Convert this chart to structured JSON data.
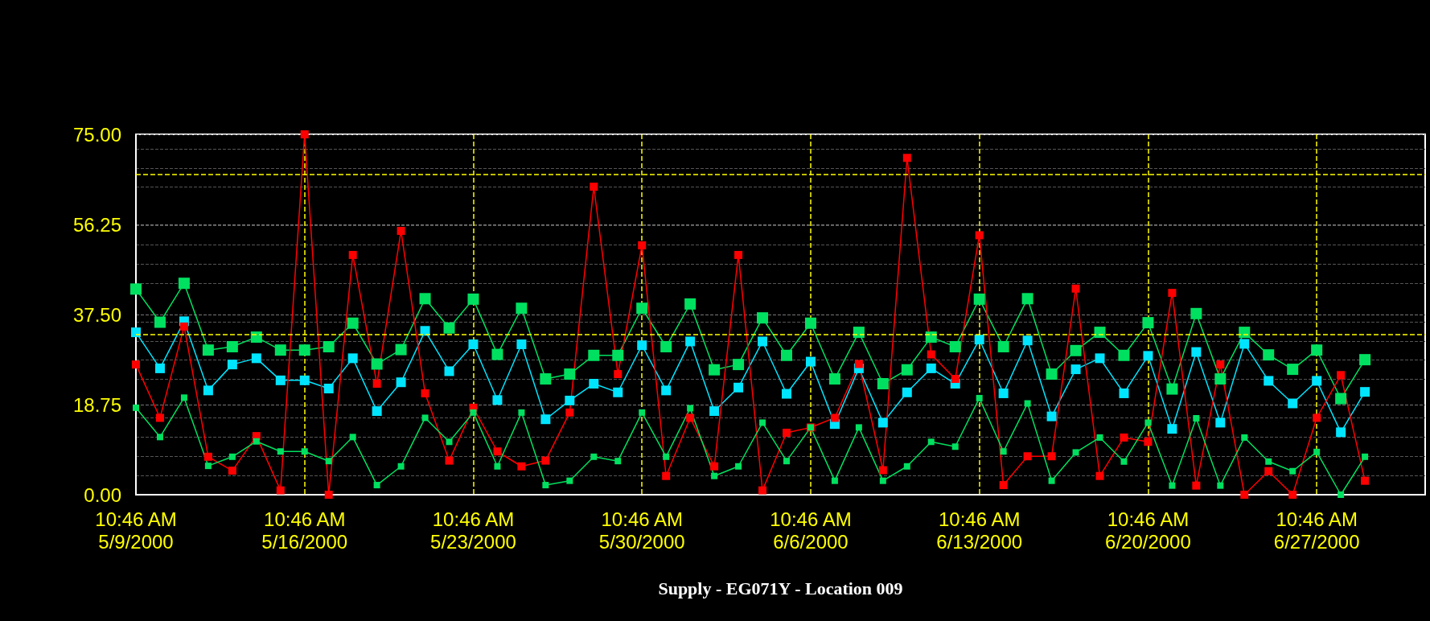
{
  "chart_data": {
    "type": "line",
    "xlabel": "Supply - EG071Y - Location 009",
    "x": [
      "2000-05-09T10:46",
      "2000-05-10T10:46",
      "2000-05-11T10:46",
      "2000-05-12T10:46",
      "2000-05-13T10:46",
      "2000-05-14T10:46",
      "2000-05-15T10:46",
      "2000-05-16T10:46",
      "2000-05-17T10:46",
      "2000-05-18T10:46",
      "2000-05-19T10:46",
      "2000-05-20T10:46",
      "2000-05-21T10:46",
      "2000-05-22T10:46",
      "2000-05-23T10:46",
      "2000-05-24T10:46",
      "2000-05-25T10:46",
      "2000-05-26T10:46",
      "2000-05-27T10:46",
      "2000-05-28T10:46",
      "2000-05-29T10:46",
      "2000-05-30T10:46",
      "2000-05-31T10:46",
      "2000-06-01T10:46",
      "2000-06-02T10:46",
      "2000-06-03T10:46",
      "2000-06-04T10:46",
      "2000-06-05T10:46",
      "2000-06-06T10:46",
      "2000-06-07T10:46",
      "2000-06-08T10:46",
      "2000-06-09T10:46",
      "2000-06-10T10:46",
      "2000-06-11T10:46",
      "2000-06-12T10:46",
      "2000-06-13T10:46",
      "2000-06-14T10:46",
      "2000-06-15T10:46",
      "2000-06-16T10:46",
      "2000-06-17T10:46",
      "2000-06-18T10:46",
      "2000-06-19T10:46",
      "2000-06-20T10:46",
      "2000-06-21T10:46",
      "2000-06-22T10:46",
      "2000-06-23T10:46",
      "2000-06-24T10:46",
      "2000-06-25T10:46",
      "2000-06-26T10:46",
      "2000-06-27T10:46",
      "2000-06-28T10:46",
      "2000-06-29T10:46"
    ],
    "series": [
      {
        "color": "#00e060",
        "values": [
          42.8,
          35.9,
          44.0,
          30.1,
          30.8,
          32.8,
          30.1,
          30.1,
          30.8,
          35.7,
          27.2,
          30.2,
          40.8,
          34.7,
          40.7,
          29.2,
          38.8,
          24.1,
          25.1,
          29.0,
          29.0,
          38.8,
          30.8,
          39.7,
          26.0,
          27.1,
          36.8,
          29.0,
          35.7,
          24.1,
          33.8,
          23.1,
          26.0,
          32.8,
          30.8,
          40.7,
          30.8,
          40.8,
          25.1,
          30.0,
          33.8,
          29.0,
          35.8,
          22.0,
          37.7,
          24.1,
          33.8,
          29.1,
          26.1,
          30.1,
          20.0,
          28.1
        ]
      },
      {
        "color": "#00e5ff",
        "values": [
          33.8,
          26.3,
          36.1,
          21.7,
          27.1,
          28.4,
          23.8,
          23.8,
          22.1,
          28.4,
          17.4,
          23.4,
          34.1,
          25.7,
          31.3,
          19.7,
          31.3,
          15.7,
          19.6,
          23.1,
          21.3,
          31.1,
          21.7,
          31.9,
          17.4,
          22.3,
          31.9,
          21.0,
          27.7,
          14.7,
          26.3,
          15.0,
          21.3,
          26.3,
          23.1,
          32.3,
          21.1,
          32.1,
          16.3,
          26.1,
          28.4,
          21.1,
          28.9,
          13.7,
          29.7,
          15.0,
          31.4,
          23.7,
          19.0,
          23.7,
          13.0,
          21.4
        ]
      },
      {
        "color": "#ff0000",
        "values": [
          27.1,
          16.0,
          35.0,
          7.9,
          5.0,
          12.2,
          0.9,
          75.0,
          0,
          49.9,
          23.1,
          54.9,
          21.1,
          7.1,
          18.1,
          9.0,
          5.9,
          7.1,
          17.1,
          64.1,
          25.1,
          51.9,
          3.9,
          16.0,
          5.9,
          49.9,
          0.9,
          12.9,
          14.0,
          16.0,
          27.2,
          5.1,
          70.1,
          29.2,
          24.1,
          54.0,
          2.0,
          8.0,
          8.0,
          42.9,
          3.9,
          11.9,
          11.0,
          42.0,
          1.9,
          27.1,
          0,
          4.9,
          0,
          16.0,
          24.9,
          2.9
        ]
      },
      {
        "color": "#00e060",
        "values": [
          18.1,
          12.0,
          20.2,
          6.0,
          7.9,
          11.1,
          9.0,
          9.0,
          7.0,
          12.0,
          2.0,
          5.9,
          16.0,
          11.0,
          17.1,
          5.9,
          17.1,
          2.0,
          2.9,
          7.9,
          7.0,
          17.1,
          7.9,
          18.0,
          3.9,
          5.9,
          15.0,
          7.0,
          14.0,
          2.9,
          14.0,
          2.9,
          5.9,
          11.0,
          10.0,
          20.1,
          9.0,
          19.0,
          2.9,
          8.8,
          11.9,
          6.9,
          15.0,
          1.9,
          15.9,
          1.9,
          11.9,
          6.9,
          4.9,
          8.9,
          0,
          7.9
        ]
      }
    ],
    "xlim": [
      "2000-05-09T10:46",
      "2000-07-01T22:46"
    ],
    "xticks": [
      {
        "value": "2000-05-09T10:46",
        "label": "10:46 AM\n5/9/2000"
      },
      {
        "value": "2000-05-16T10:46",
        "label": "10:46 AM\n5/16/2000"
      },
      {
        "value": "2000-05-23T10:46",
        "label": "10:46 AM\n5/23/2000"
      },
      {
        "value": "2000-05-30T10:46",
        "label": "10:46 AM\n5/30/2000"
      },
      {
        "value": "2000-06-06T10:46",
        "label": "10:46 AM\n6/6/2000"
      },
      {
        "value": "2000-06-13T10:46",
        "label": "10:46 AM\n6/13/2000"
      },
      {
        "value": "2000-06-20T10:46",
        "label": "10:46 AM\n6/20/2000"
      },
      {
        "value": "2000-06-27T10:46",
        "label": "10:46 AM\n6/27/2000"
      }
    ],
    "ylim": [
      0,
      75
    ],
    "yticks": [
      {
        "value": 0,
        "label": "0.00"
      },
      {
        "value": 18.75,
        "label": "18.75"
      },
      {
        "value": 37.5,
        "label": "37.50"
      },
      {
        "value": 56.25,
        "label": "56.25"
      },
      {
        "value": 75,
        "label": "75.00"
      }
    ],
    "ref_lines": [
      {
        "axis": "y",
        "value": 33.3,
        "color": "#ffff00",
        "line_style": "dashed"
      },
      {
        "axis": "y",
        "value": 66.7,
        "color": "#ffff00",
        "line_style": "dashed"
      }
    ],
    "grid": true,
    "marker": "square",
    "line_style": "solid"
  }
}
